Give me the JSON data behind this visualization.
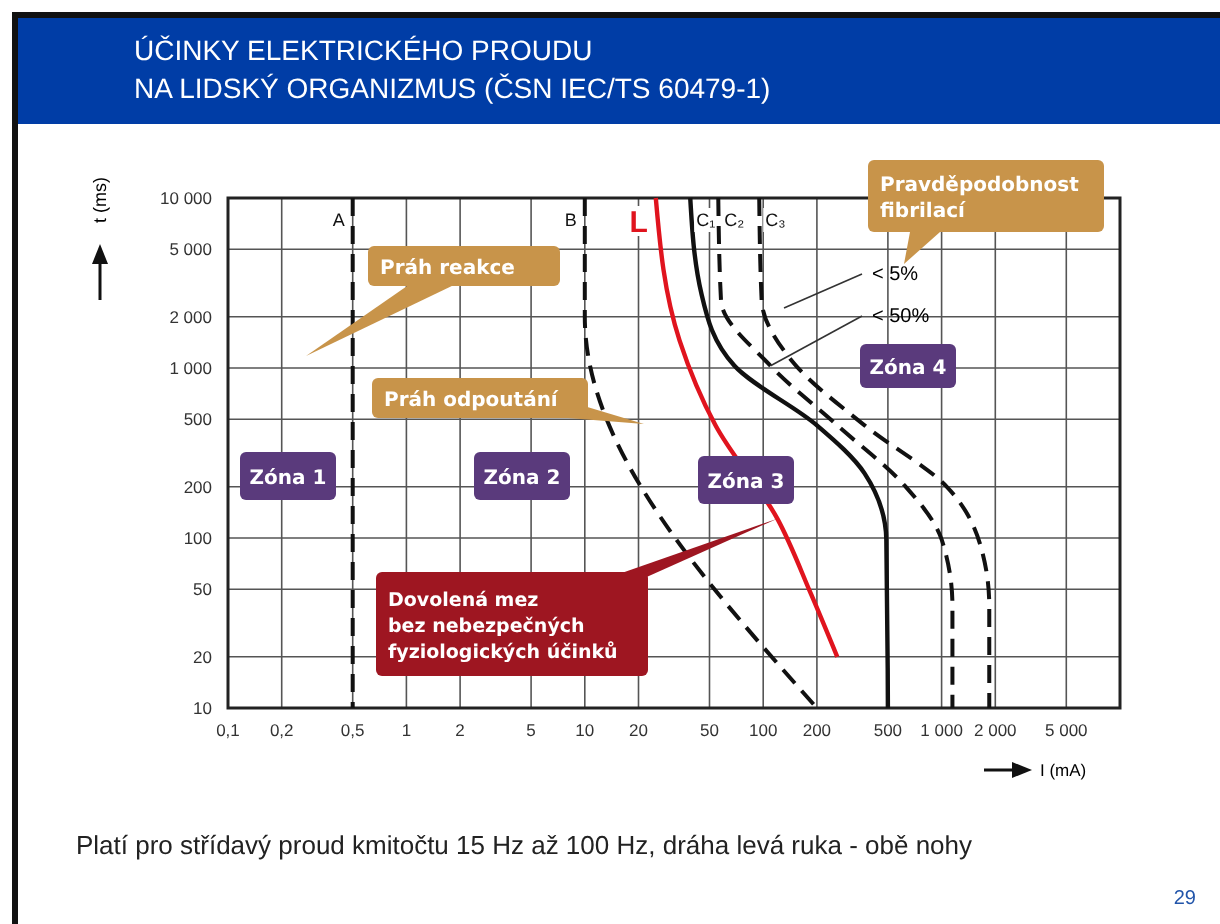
{
  "chart_data": {
    "type": "line",
    "title": "ÚČINKY ELEKTRICKÉHO PROUDU\nNA LIDSKÝ ORGANIZMUS (ČSN IEC/TS 60479-1)",
    "xlabel": "I (mA)",
    "ylabel": "t (ms)",
    "log": "xy",
    "grid": true,
    "xlim": [
      0.1,
      10000
    ],
    "ylim": [
      10,
      10000
    ],
    "xticks": [
      {
        "value": 0.1,
        "label": "0,1"
      },
      {
        "value": 0.2,
        "label": "0,2"
      },
      {
        "value": 0.5,
        "label": "0,5"
      },
      1,
      2,
      5,
      10,
      20,
      50,
      100,
      200,
      500,
      {
        "value": 1000,
        "label": "1 000"
      },
      {
        "value": 2000,
        "label": "2 000"
      },
      {
        "value": 5000,
        "label": "5 000"
      }
    ],
    "yticks": [
      10,
      20,
      50,
      100,
      200,
      500,
      {
        "value": 1000,
        "label": "1 000"
      },
      {
        "value": 2000,
        "label": "2 000"
      },
      {
        "value": 5000,
        "label": "5 000"
      },
      {
        "value": 10000,
        "label": "10 000"
      }
    ],
    "series": [
      {
        "name": "A",
        "color": "#111111",
        "line_style": "dashed",
        "x": [
          0.5,
          0.5
        ],
        "values": [
          10000,
          10
        ]
      },
      {
        "name": "B",
        "color": "#111111",
        "line_style": "dashed",
        "x": [
          10,
          10,
          200
        ],
        "values": [
          10000,
          2000,
          10
        ]
      },
      {
        "name": "L",
        "color": "#e0141e",
        "line_style": "solid",
        "x": [
          25,
          34,
          54,
          120,
          185,
          260
        ],
        "values": [
          10000,
          1450,
          460,
          130,
          47,
          20
        ]
      },
      {
        "name": "C₁",
        "color": "#111111",
        "line_style": "solid",
        "x": [
          39,
          45,
          69,
          200,
          370,
          490,
          500
        ],
        "values": [
          10000,
          2750,
          1030,
          460,
          240,
          98,
          10
        ]
      },
      {
        "name": "C₂",
        "color": "#111111",
        "line_style": "dashed",
        "x": [
          56,
          58,
          110,
          260,
          630,
          1000,
          1150,
          1150
        ],
        "values": [
          10000,
          2500,
          1030,
          460,
          200,
          98,
          40,
          10
        ]
      },
      {
        "name": "C₃",
        "color": "#111111",
        "line_style": "dashed",
        "x": [
          95,
          98,
          145,
          370,
          1070,
          1700,
          1850,
          1850
        ],
        "values": [
          10000,
          2500,
          1100,
          460,
          200,
          81,
          40,
          10
        ]
      }
    ],
    "annotations": [
      "Práh reakce",
      "Práh odpoutání",
      {
        "text": "Dovolená mez\nbez nebezpečných\nfyziologických účinků",
        "x": 120,
        "y": 130
      },
      "Pravděpodobnost\nfibrilací",
      "< 5%",
      {
        "text": "< 50%",
        "x": 110,
        "y": 1030
      },
      "Zóna 1",
      "Zóna 2",
      "Zóna 3",
      "Zóna 4",
      "Platí pro střídavý proud kmitočtu 15 Hz až 100 Hz, dráha levá ruka - obě nohy",
      "29"
    ]
  }
}
